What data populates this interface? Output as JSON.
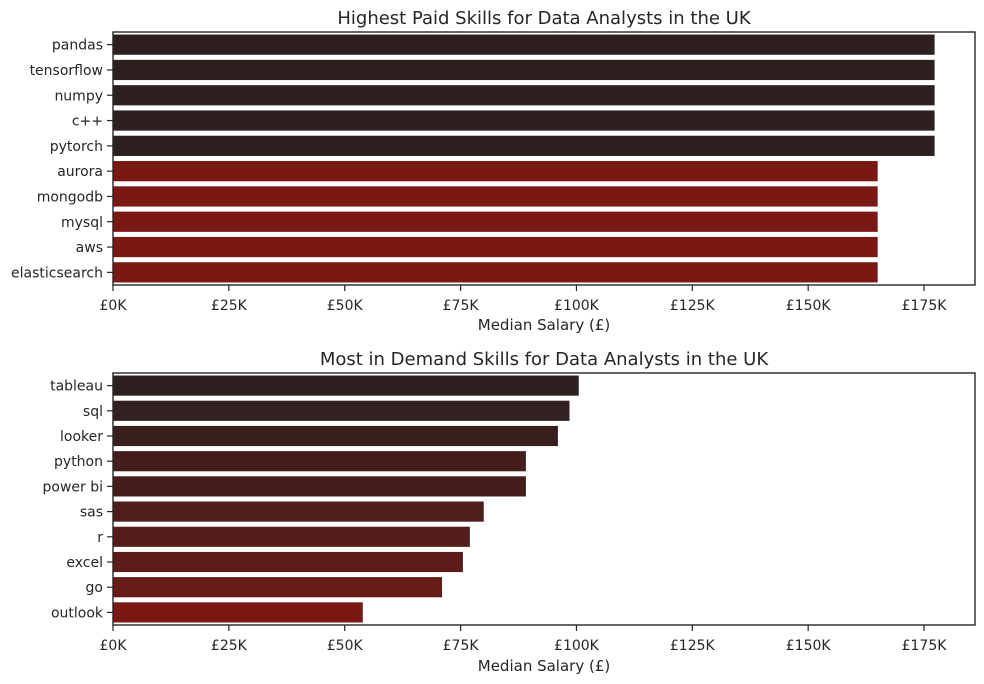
{
  "chart_data": [
    {
      "type": "bar",
      "orientation": "horizontal",
      "title": "Highest Paid Skills for Data Analysts in the UK",
      "xlabel": "Median Salary (£)",
      "ylabel": "",
      "xlim": [
        0,
        186000
      ],
      "xticks": [
        0,
        25000,
        50000,
        75000,
        100000,
        125000,
        150000,
        175000
      ],
      "xtick_labels": [
        "£0K",
        "£25K",
        "£50K",
        "£75K",
        "£100K",
        "£125K",
        "£150K",
        "£175K"
      ],
      "categories": [
        "pandas",
        "tensorflow",
        "numpy",
        "c++",
        "pytorch",
        "aurora",
        "mongodb",
        "mysql",
        "aws",
        "elasticsearch"
      ],
      "values": [
        177283,
        177283,
        177283,
        177283,
        177283,
        165000,
        165000,
        165000,
        165000,
        165000
      ],
      "colors": [
        "#2f2020",
        "#2f2020",
        "#2f2020",
        "#2f2020",
        "#2f2020",
        "#7a1813",
        "#7a1813",
        "#7a1813",
        "#7a1813",
        "#7a1813"
      ],
      "grid": false,
      "legend": "none"
    },
    {
      "type": "bar",
      "orientation": "horizontal",
      "title": "Most in Demand Skills for Data Analysts in the UK",
      "xlabel": "Median Salary (£)",
      "ylabel": "",
      "xlim": [
        0,
        186000
      ],
      "xticks": [
        0,
        25000,
        50000,
        75000,
        100000,
        125000,
        150000,
        175000
      ],
      "xtick_labels": [
        "£0K",
        "£25K",
        "£50K",
        "£75K",
        "£100K",
        "£125K",
        "£150K",
        "£175K"
      ],
      "categories": [
        "tableau",
        "sql",
        "looker",
        "python",
        "power bi",
        "sas",
        "r",
        "excel",
        "go",
        "outlook"
      ],
      "values": [
        100500,
        98500,
        96000,
        89100,
        89100,
        80000,
        77000,
        75500,
        71000,
        53900
      ],
      "colors": [
        "#2f2020",
        "#332020",
        "#3a1f1f",
        "#441e1c",
        "#451e1c",
        "#4f1d1b",
        "#551d19",
        "#5d1c18",
        "#671b16",
        "#7a1813"
      ],
      "grid": false,
      "legend": "none"
    }
  ]
}
